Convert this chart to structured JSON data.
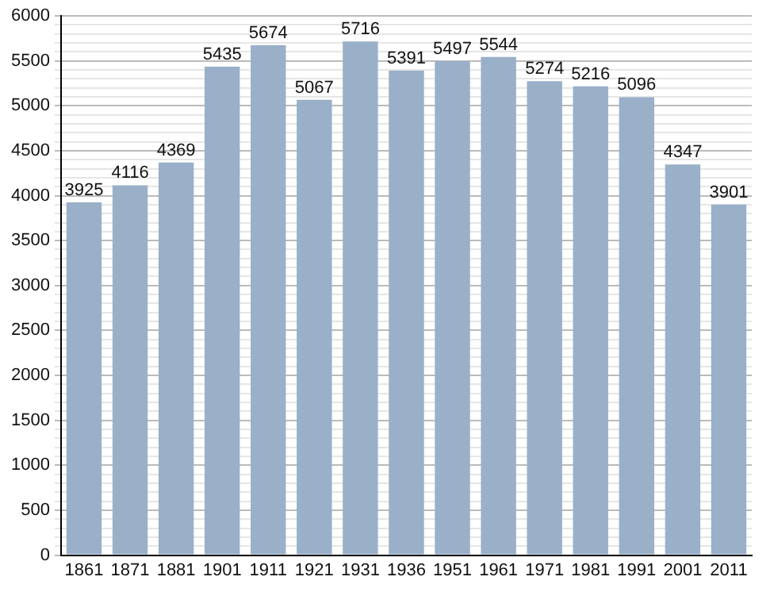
{
  "chart_data": {
    "type": "bar",
    "categories": [
      "1861",
      "1871",
      "1881",
      "1901",
      "1911",
      "1921",
      "1931",
      "1936",
      "1951",
      "1961",
      "1971",
      "1981",
      "1991",
      "2001",
      "2011"
    ],
    "values": [
      3925,
      4116,
      4369,
      5435,
      5674,
      5067,
      5716,
      5391,
      5497,
      5544,
      5274,
      5216,
      5096,
      4347,
      3901
    ],
    "color": "#9ab0c9",
    "data_labels": true,
    "grid": "y",
    "ylim": [
      0,
      6000
    ],
    "yticks": [
      0,
      {
        "value": 100,
        "label": null
      },
      {
        "value": 200,
        "label": null
      },
      {
        "value": 300,
        "label": null
      },
      {
        "value": 400,
        "label": null
      },
      500,
      {
        "value": 600,
        "label": null
      },
      {
        "value": 700,
        "label": null
      },
      {
        "value": 800,
        "label": null
      },
      {
        "value": 900,
        "label": null
      },
      1000,
      {
        "value": 1100,
        "label": null
      },
      {
        "value": 1200,
        "label": null
      },
      {
        "value": 1300,
        "label": null
      },
      {
        "value": 1400,
        "label": null
      },
      1500,
      {
        "value": 1600,
        "label": null
      },
      {
        "value": 1700,
        "label": null
      },
      {
        "value": 1800,
        "label": null
      },
      {
        "value": 1900,
        "label": null
      },
      2000,
      {
        "value": 2100,
        "label": null
      },
      {
        "value": 2200,
        "label": null
      },
      {
        "value": 2300,
        "label": null
      },
      {
        "value": 2400,
        "label": null
      },
      2500,
      {
        "value": 2600,
        "label": null
      },
      {
        "value": 2700,
        "label": null
      },
      {
        "value": 2800,
        "label": null
      },
      {
        "value": 2900,
        "label": null
      },
      3000,
      {
        "value": 3100,
        "label": null
      },
      {
        "value": 3200,
        "label": null
      },
      {
        "value": 3300,
        "label": null
      },
      {
        "value": 3400,
        "label": null
      },
      3500,
      {
        "value": 3600,
        "label": null
      },
      {
        "value": 3700,
        "label": null
      },
      {
        "value": 3800,
        "label": null
      },
      {
        "value": 3900,
        "label": null
      },
      4000,
      {
        "value": 4100,
        "label": null
      },
      {
        "value": 4200,
        "label": null
      },
      {
        "value": 4300,
        "label": null
      },
      {
        "value": 4400,
        "label": null
      },
      4500,
      {
        "value": 4600,
        "label": null
      },
      {
        "value": 4700,
        "label": null
      },
      {
        "value": 4800,
        "label": null
      },
      {
        "value": 4900,
        "label": null
      },
      5000,
      {
        "value": 5100,
        "label": null
      },
      {
        "value": 5200,
        "label": null
      },
      {
        "value": 5300,
        "label": null
      },
      {
        "value": 5400,
        "label": null
      },
      5500,
      {
        "value": 5600,
        "label": null
      },
      {
        "value": 5700,
        "label": null
      },
      {
        "value": 5800,
        "label": null
      },
      {
        "value": 5900,
        "label": null
      },
      6000
    ]
  }
}
